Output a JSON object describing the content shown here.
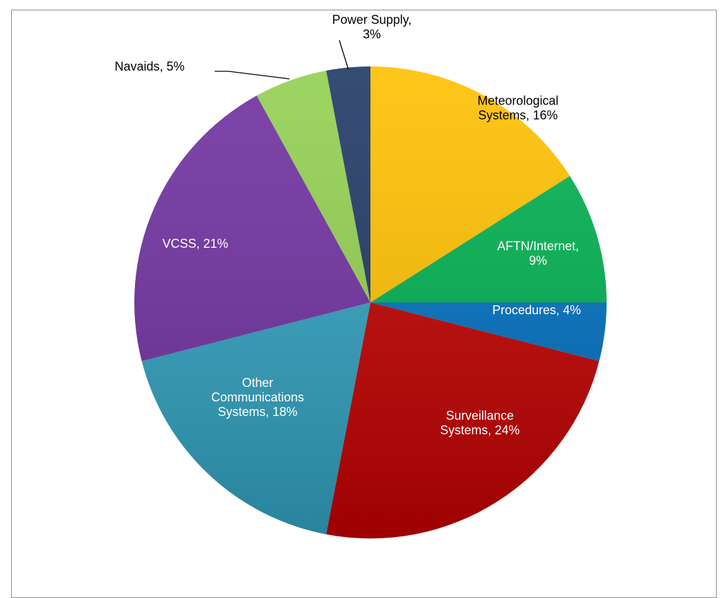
{
  "chart_data": {
    "type": "pie",
    "title": "",
    "slices": [
      {
        "label": "Meteorological Systems",
        "value": 16,
        "text_lines": [
          "Meteorological",
          "Systems, 16%"
        ],
        "color": "#FFC000",
        "label_color": "#000000"
      },
      {
        "label": "AFTN/Internet",
        "value": 9,
        "text_lines": [
          "AFTN/Internet,",
          "9%"
        ],
        "color": "#00B050",
        "label_color": "#ffffff"
      },
      {
        "label": "Procedures",
        "value": 4,
        "text_lines": [
          "Procedures, 4%"
        ],
        "color": "#0070C0",
        "label_color": "#ffffff"
      },
      {
        "label": "Surveillance Systems",
        "value": 24,
        "text_lines": [
          "Surveillance",
          "Systems, 24%"
        ],
        "color": "#C00000",
        "label_color": "#ffffff"
      },
      {
        "label": "Other Communications Systems",
        "value": 18,
        "text_lines": [
          "Other",
          "Communications",
          "Systems, 18%"
        ],
        "color": "#31A0BE",
        "label_color": "#ffffff"
      },
      {
        "label": "VCSS",
        "value": 21,
        "text_lines": [
          "VCSS, 21%"
        ],
        "color": "#7030A0",
        "label_color": "#ffffff"
      },
      {
        "label": "Navaids",
        "value": 5,
        "text_lines": [
          "Navaids, 5%"
        ],
        "color": "#92D050",
        "label_color": "#000000"
      },
      {
        "label": "Power Supply",
        "value": 3,
        "text_lines": [
          "Power Supply,",
          "3%"
        ],
        "color": "#1F3864",
        "label_color": "#000000"
      }
    ]
  }
}
